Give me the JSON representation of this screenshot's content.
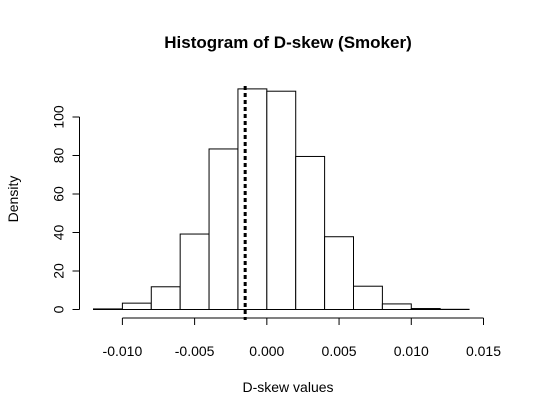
{
  "chart_data": {
    "type": "histogram",
    "title": "Histogram of D-skew (Smoker)",
    "xlabel": "D-skew values",
    "ylabel": "Density",
    "xlim": [
      -0.012,
      0.015
    ],
    "ylim": [
      0,
      115
    ],
    "x_ticks": [
      -0.01,
      -0.005,
      0.0,
      0.005,
      0.01,
      0.015
    ],
    "x_tick_labels": [
      "-0.010",
      "-0.005",
      "0.000",
      "0.005",
      "0.010",
      "0.015"
    ],
    "y_ticks": [
      0,
      20,
      40,
      60,
      80,
      100
    ],
    "y_tick_labels": [
      "0",
      "20",
      "40",
      "60",
      "80",
      "100"
    ],
    "bin_edges": [
      -0.012,
      -0.01,
      -0.008,
      -0.006,
      -0.004,
      -0.002,
      0.0,
      0.002,
      0.004,
      0.006,
      0.008,
      0.01,
      0.012,
      0.014
    ],
    "densities": [
      0.3,
      3.3,
      11.8,
      39.2,
      83.4,
      114.6,
      113.4,
      79.5,
      37.8,
      12.1,
      2.9,
      0.5,
      0.1
    ],
    "reference_line": {
      "x": -0.0015,
      "style": "dashed"
    },
    "grid": false,
    "legend": false
  }
}
